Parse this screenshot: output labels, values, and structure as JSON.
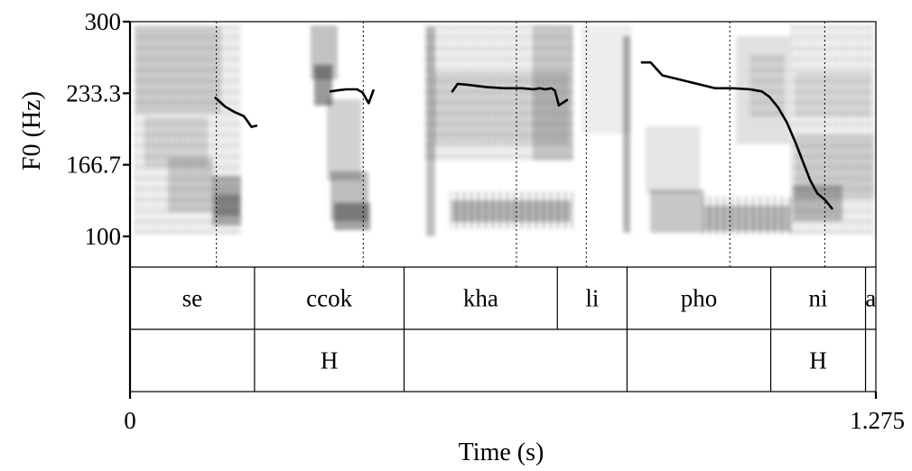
{
  "chart_data": {
    "type": "line",
    "title": "",
    "ylabel": "F0 (Hz)",
    "xlabel": "Time (s)",
    "ylim": [
      100,
      300
    ],
    "xlim": [
      0,
      1.275
    ],
    "y_ticks": [
      "100",
      "166.7",
      "233.3",
      "300"
    ],
    "y_tick_values": [
      100,
      166.7,
      233.3,
      300
    ],
    "x_ticks": [
      "0",
      "1.275"
    ],
    "x_tick_values": [
      0,
      1.275
    ],
    "grid": false,
    "background": "spectrogram",
    "boundaries": [
      0.1476,
      0.3987,
      0.6606,
      0.78,
      1.0253,
      1.1876
    ],
    "series": [
      {
        "color": "#000000",
        "segments": [
          [
            [
              0.1462,
              229
            ],
            [
              0.1622,
              221
            ],
            [
              0.1782,
              216
            ],
            [
              0.1943,
              212
            ],
            [
              0.2,
              208
            ],
            [
              0.2075,
              202
            ],
            [
              0.216,
              203
            ]
          ],
          [
            [
              0.3427,
              235
            ],
            [
              0.354,
              236
            ],
            [
              0.369,
              237
            ],
            [
              0.388,
              237
            ],
            [
              0.3975,
              234
            ],
            [
              0.408,
              224
            ],
            [
              0.416,
              236
            ]
          ],
          [
            [
              0.551,
              235
            ],
            [
              0.56,
              242
            ],
            [
              0.58,
              241
            ],
            [
              0.61,
              239
            ],
            [
              0.64,
              238
            ],
            [
              0.67,
              238
            ],
            [
              0.69,
              237
            ],
            [
              0.7,
              238
            ],
            [
              0.71,
              237
            ],
            [
              0.72,
              238
            ],
            [
              0.7263,
              236
            ],
            [
              0.733,
              222
            ],
            [
              0.747,
              227
            ]
          ],
          [
            [
              0.875,
              262
            ],
            [
              0.89,
              262
            ],
            [
              0.91,
              250
            ],
            [
              0.94,
              246
            ],
            [
              0.97,
              242
            ],
            [
              1.0,
              238
            ],
            [
              1.03,
              238
            ],
            [
              1.06,
              237
            ],
            [
              1.08,
              235
            ],
            [
              1.093,
              230
            ],
            [
              1.108,
              220
            ],
            [
              1.123,
              206
            ],
            [
              1.138,
              187
            ],
            [
              1.15,
              170
            ],
            [
              1.163,
              152
            ],
            [
              1.175,
              140
            ],
            [
              1.188,
              134
            ],
            [
              1.2,
              126
            ]
          ]
        ]
      }
    ],
    "tiers": [
      {
        "intervals": [
          {
            "label": "se",
            "start": 0,
            "end": 0.2128
          },
          {
            "label": "ccok",
            "start": 0.2128,
            "end": 0.4684
          },
          {
            "label": "kha",
            "start": 0.4684,
            "end": 0.7305
          },
          {
            "label": "li",
            "start": 0.7305,
            "end": 0.8496
          },
          {
            "label": "pho",
            "start": 0.8496,
            "end": 1.0953
          },
          {
            "label": "ni",
            "start": 1.0953,
            "end": 1.2573
          },
          {
            "label": "a",
            "start": 1.2573,
            "end": 1.275
          }
        ]
      },
      {
        "intervals": [
          {
            "label": "",
            "start": 0,
            "end": 0.2128
          },
          {
            "label": "H",
            "start": 0.2128,
            "end": 0.4684
          },
          {
            "label": "",
            "start": 0.4684,
            "end": 0.8496
          },
          {
            "label": "",
            "start": 0.8496,
            "end": 1.0953
          },
          {
            "label": "H",
            "start": 1.0953,
            "end": 1.2573
          },
          {
            "label": "",
            "start": 1.2573,
            "end": 1.275
          }
        ]
      }
    ]
  }
}
